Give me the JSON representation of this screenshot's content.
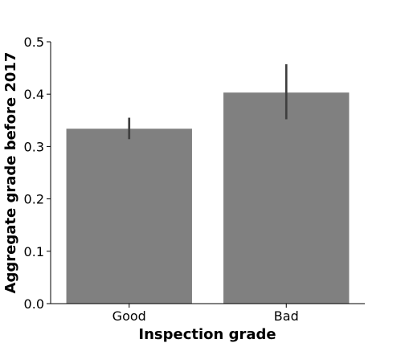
{
  "chart_data": {
    "type": "bar",
    "categories": [
      "Good",
      "Bad"
    ],
    "values": [
      0.334,
      0.403
    ],
    "error_bars": [
      [
        0.314,
        0.355
      ],
      [
        0.352,
        0.457
      ]
    ],
    "xlabel": "Inspection grade",
    "ylabel": "Aggregate grade before 2017",
    "ylim": [
      0,
      0.5
    ],
    "yticks": [
      0.0,
      0.1,
      0.2,
      0.3,
      0.4,
      0.5
    ],
    "ytick_labels": [
      "0.0",
      "0.1",
      "0.2",
      "0.3",
      "0.4",
      "0.5"
    ],
    "grid": false,
    "legend": "none",
    "bar_color": "#808080",
    "error_color": "#3f3f3f"
  }
}
